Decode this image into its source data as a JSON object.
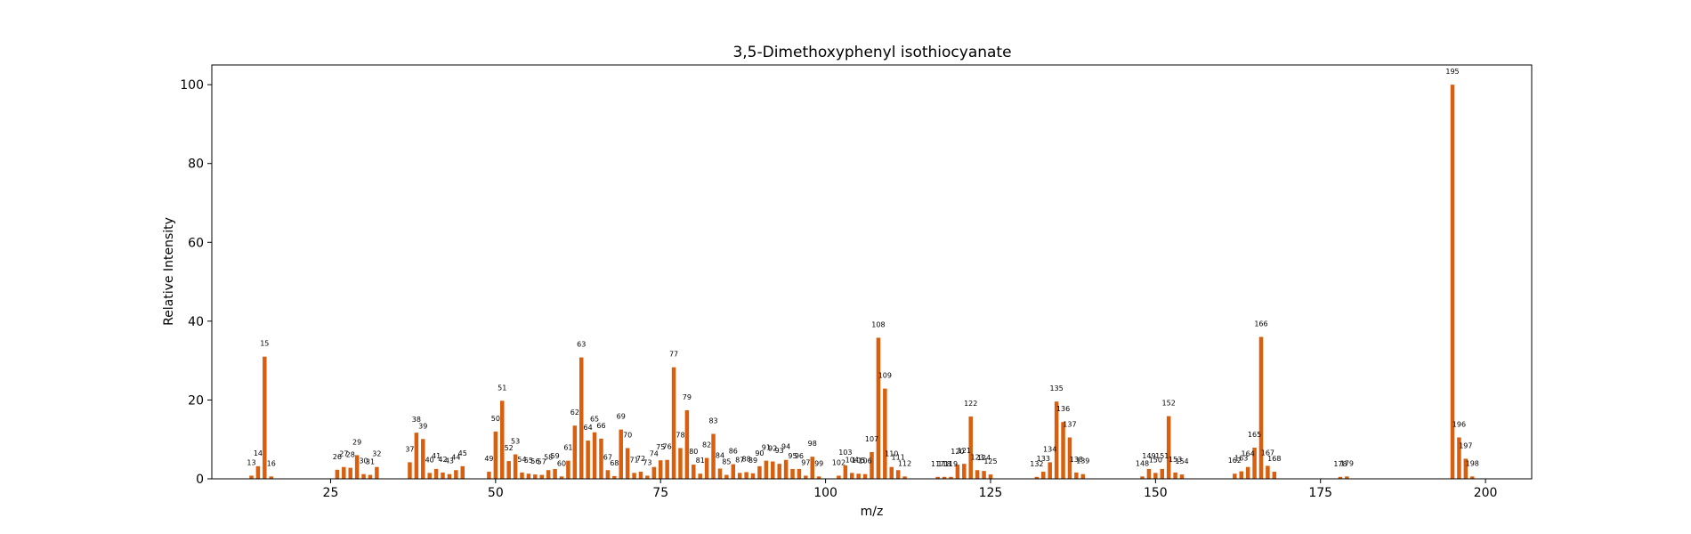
{
  "chart_data": {
    "type": "bar",
    "title": "3,5-Dimethoxyphenyl isothiocyanate",
    "xlabel": "m/z",
    "ylabel": "Relative Intensity",
    "xlim": [
      7,
      207
    ],
    "ylim": [
      0,
      105
    ],
    "xticks": [
      25,
      50,
      75,
      100,
      125,
      150,
      175,
      200
    ],
    "yticks": [
      0,
      20,
      40,
      60,
      80,
      100
    ],
    "bar_color": "#d95f0e",
    "grid": false,
    "series": [
      {
        "x": [
          13,
          14,
          15,
          16,
          26,
          27,
          28,
          29,
          30,
          31,
          32,
          37,
          38,
          39,
          40,
          41,
          42,
          43,
          44,
          45,
          49,
          50,
          51,
          52,
          53,
          54,
          55,
          56,
          57,
          58,
          59,
          60,
          61,
          62,
          63,
          64,
          65,
          66,
          67,
          68,
          69,
          70,
          71,
          72,
          73,
          74,
          75,
          76,
          77,
          78,
          79,
          80,
          81,
          82,
          83,
          84,
          85,
          86,
          87,
          88,
          89,
          90,
          91,
          92,
          93,
          94,
          95,
          96,
          97,
          98,
          99,
          102,
          103,
          104,
          105,
          106,
          107,
          108,
          109,
          110,
          111,
          112,
          117,
          118,
          119,
          120,
          121,
          122,
          123,
          124,
          125,
          132,
          133,
          134,
          135,
          136,
          137,
          138,
          139,
          148,
          149,
          150,
          151,
          152,
          153,
          154,
          162,
          163,
          164,
          165,
          166,
          167,
          168,
          178,
          179,
          195,
          196,
          197,
          198
        ],
        "y": [
          0.8,
          3.2,
          31,
          0.6,
          2.3,
          3,
          2.8,
          6,
          1.2,
          1,
          3,
          4.2,
          11.7,
          10.1,
          1.5,
          2.5,
          1.6,
          1.2,
          2.2,
          3.2,
          1.8,
          12,
          19.8,
          4.5,
          6.2,
          1.6,
          1.3,
          1.1,
          1,
          2.2,
          2.5,
          0.6,
          4.6,
          13.5,
          30.8,
          9.7,
          11.8,
          10.2,
          2.2,
          0.7,
          12.5,
          7.8,
          1.5,
          1.8,
          0.8,
          3,
          4.7,
          4.8,
          28.3,
          7.8,
          17.4,
          3.6,
          1.3,
          5.3,
          11.4,
          2.6,
          1,
          3.7,
          1.5,
          1.7,
          1.4,
          3.2,
          4.6,
          4.4,
          3.8,
          4.8,
          2.5,
          2.5,
          0.8,
          5.6,
          0.6,
          0.8,
          3.4,
          1.5,
          1.3,
          1.2,
          6.8,
          35.8,
          22.9,
          3,
          2.2,
          0.6,
          0.5,
          0.5,
          0.5,
          3.6,
          3.8,
          15.8,
          2.2,
          2,
          1.1,
          0.5,
          1.8,
          4.2,
          19.6,
          14.4,
          10.5,
          1.6,
          1.2,
          0.6,
          2.5,
          1.5,
          2.5,
          15.9,
          1.6,
          1.1,
          1.3,
          1.9,
          3,
          7.9,
          36,
          3.3,
          1.8,
          0.5,
          0.6,
          100,
          10.5,
          5.1,
          0.6
        ],
        "labels": [
          "13",
          "14",
          "15",
          "16",
          "26",
          "27",
          "28",
          "29",
          "30",
          "31",
          "32",
          "37",
          "38",
          "39",
          "40",
          "41",
          "42",
          "43",
          "44",
          "45",
          "49",
          "50",
          "51",
          "52",
          "53",
          "54",
          "55",
          "56",
          "57",
          "58",
          "59",
          "60",
          "61",
          "62",
          "63",
          "64",
          "65",
          "66",
          "67",
          "68",
          "69",
          "70",
          "71",
          "72",
          "73",
          "74",
          "75",
          "76",
          "77",
          "78",
          "79",
          "80",
          "81",
          "82",
          "83",
          "84",
          "85",
          "86",
          "87",
          "88",
          "89",
          "90",
          "91",
          "92",
          "93",
          "94",
          "95",
          "96",
          "97",
          "98",
          "99",
          "102",
          "103",
          "104",
          "105",
          "106",
          "107",
          "108",
          "109",
          "110",
          "111",
          "112",
          "117",
          "118",
          "119",
          "120",
          "121",
          "122",
          "123",
          "124",
          "125",
          "132",
          "133",
          "134",
          "135",
          "136",
          "137",
          "138",
          "139",
          "148",
          "149",
          "150",
          "151",
          "152",
          "153",
          "154",
          "162",
          "163",
          "164",
          "165",
          "166",
          "167",
          "168",
          "178",
          "179",
          "195",
          "196",
          "197",
          "198"
        ]
      }
    ]
  }
}
